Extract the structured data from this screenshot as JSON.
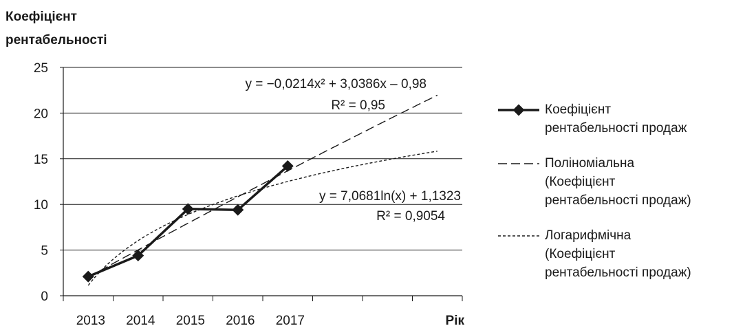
{
  "chart_data": {
    "type": "line",
    "ylabel": "Коефіцієнт рентабельності",
    "ylabel_lines": [
      "Коефіцієнт",
      "рентабельності"
    ],
    "xlabel": "Рік",
    "categories": [
      "2013",
      "2014",
      "2015",
      "2016",
      "2017"
    ],
    "ylim": [
      0,
      25
    ],
    "yticks": [
      "0",
      "5",
      "10",
      "15",
      "20",
      "25"
    ],
    "grid": true,
    "legend_position": "right",
    "series": [
      {
        "name": "Коефіцієнт рентабельності продаж",
        "legend_label": "Коефіцієнт\nрентабельності продаж",
        "x": [
          1,
          2,
          3,
          4,
          5
        ],
        "values": [
          2.1,
          4.4,
          9.5,
          9.4,
          14.2
        ],
        "style": "solid-marker",
        "color": "#1a1a1a"
      }
    ],
    "trendlines": [
      {
        "name": "Поліноміальна (Коефіцієнт рентабельності продаж)",
        "legend_label": "Поліноміальна\n(Коефіцієнт\nрентабельності продаж)",
        "kind": "polynomial",
        "coefficients": {
          "a": -0.0214,
          "b": 3.0386,
          "c": -0.98
        },
        "x_range": [
          1,
          8
        ],
        "equation": "y = −0,0214x² + 3,0386x – 0,98",
        "r2": "R² = 0,95",
        "style": "long-dash"
      },
      {
        "name": "Логарифмічна (Коефіцієнт рентабельності продаж)",
        "legend_label": "Логарифмічна\n(Коефіцієнт\nрентабельності продаж)",
        "kind": "logarithmic",
        "coefficients": {
          "a": 7.0681,
          "b": 1.1323
        },
        "x_range": [
          1,
          8
        ],
        "equation": "y = 7,0681ln(x) + 1,1323",
        "r2": "R² = 0,9054",
        "style": "short-dash"
      }
    ]
  }
}
